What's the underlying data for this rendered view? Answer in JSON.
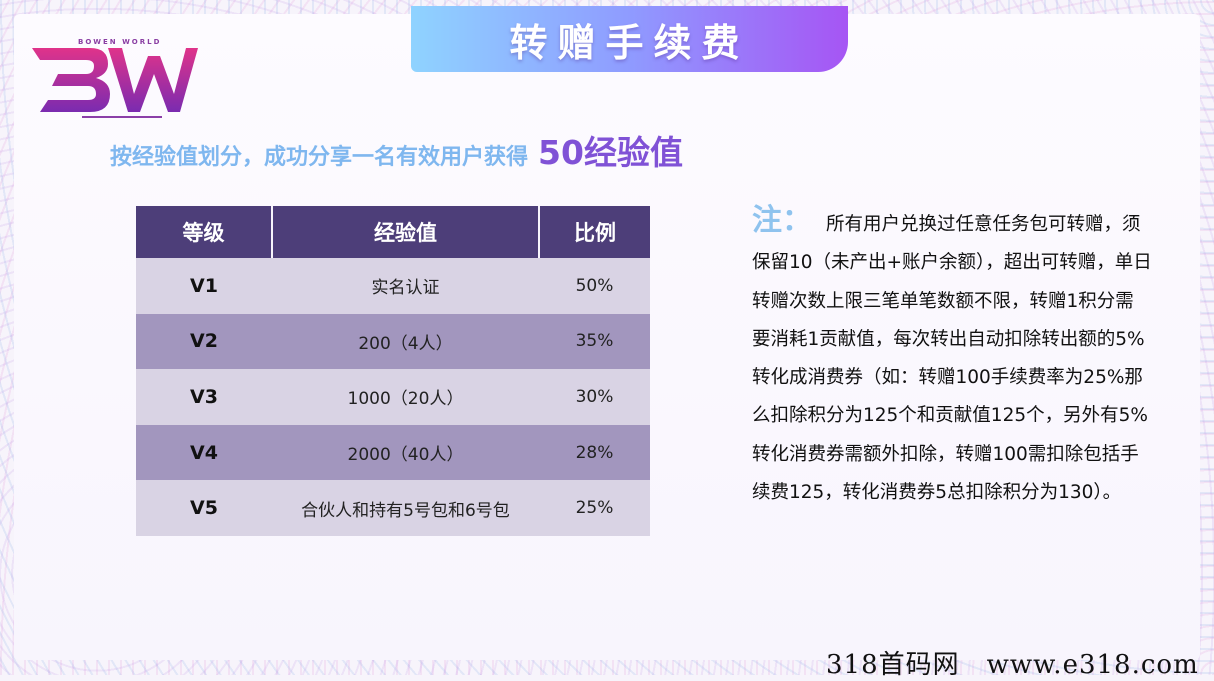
{
  "brand": {
    "logo_text": "BW",
    "logo_subtext": "BOWEN WORLD",
    "accent_color": "#8b3fa8"
  },
  "title": "转赠手续费",
  "subtitle": {
    "prefix": "按经验值划分，成功分享一名有效用户获得",
    "highlight": "50经验值"
  },
  "table": {
    "headers": [
      "等级",
      "经验值",
      "比例"
    ],
    "rows": [
      {
        "level": "V1",
        "exp": "实名认证",
        "ratio": "50%"
      },
      {
        "level": "V2",
        "exp": "200（4人）",
        "ratio": "35%"
      },
      {
        "level": "V3",
        "exp": "1000（20人）",
        "ratio": "30%"
      },
      {
        "level": "V4",
        "exp": "2000（40人）",
        "ratio": "28%"
      },
      {
        "level": "V5",
        "exp": "合伙人和持有5号包和6号包",
        "ratio": "25%"
      }
    ]
  },
  "note": {
    "label": "注：",
    "text": "所有用户兑换过任意任务包可转赠，须保留10（未产出+账户余额），超出可转赠，单日转赠次数上限三笔单笔数额不限，转赠1积分需要消耗1贡献值，每次转出自动扣除转出额的5%转化成消费券（如：转赠100手续费率为25%那么扣除积分为125个和贡献值125个，另外有5%转化消费券需额外扣除，转赠100需扣除包括手续费125，转化消费券5总扣除积分为130）。"
  },
  "watermark": "318首码网　www.e318.com"
}
